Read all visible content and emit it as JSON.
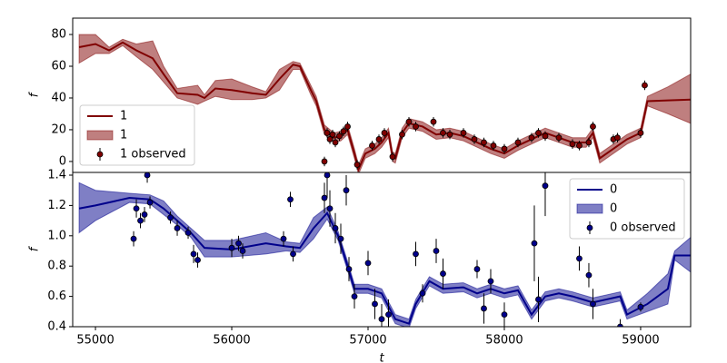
{
  "chart_data": [
    {
      "type": "line",
      "ylabel": "f",
      "xlim": [
        54833,
        59367
      ],
      "ylim": [
        -6.9,
        90.3
      ],
      "yticks": [
        0,
        20,
        40,
        60,
        80
      ],
      "legend": "lower left",
      "series": [
        {
          "name": "1",
          "type": "line",
          "color": "#800000",
          "x": [
            54880,
            55000,
            55100,
            55200,
            55300,
            55420,
            55500,
            55600,
            55750,
            55800,
            55880,
            56000,
            56150,
            56250,
            56350,
            56450,
            56500,
            56580,
            56620,
            56680,
            56750,
            56800,
            56850,
            56900,
            56930,
            56980,
            57050,
            57100,
            57150,
            57180,
            57200,
            57250,
            57300,
            57400,
            57500,
            57600,
            57700,
            57800,
            57900,
            58000,
            58100,
            58200,
            58300,
            58400,
            58500,
            58600,
            58650,
            58700,
            58800,
            58900,
            59000,
            59050,
            59200,
            59367
          ],
          "values": [
            72,
            74,
            70,
            75,
            70,
            65,
            55,
            43,
            42,
            40,
            46,
            45,
            43,
            42,
            52,
            61,
            60,
            45,
            38,
            20,
            15,
            16,
            20,
            5,
            -5,
            5,
            8,
            12,
            18,
            3,
            2,
            18,
            24,
            22,
            17,
            18,
            16,
            12,
            8,
            5,
            10,
            14,
            18,
            15,
            12,
            12,
            18,
            2,
            8,
            14,
            18,
            38,
            38.5,
            39
          ]
        },
        {
          "name": "1",
          "type": "band",
          "color": "#800000",
          "x": [
            54880,
            55000,
            55100,
            55200,
            55300,
            55420,
            55500,
            55600,
            55750,
            55800,
            55880,
            56000,
            56150,
            56250,
            56350,
            56450,
            56500,
            56580,
            56620,
            56680,
            56750,
            56800,
            56850,
            56900,
            56930,
            56980,
            57050,
            57100,
            57150,
            57180,
            57200,
            57250,
            57300,
            57400,
            57500,
            57600,
            57700,
            57800,
            57900,
            58000,
            58100,
            58200,
            58300,
            58400,
            58500,
            58600,
            58650,
            58700,
            58800,
            58900,
            59000,
            59050,
            59200,
            59367
          ],
          "lower": [
            62,
            68,
            68,
            73,
            66,
            58,
            50,
            40,
            36,
            38,
            41,
            39,
            39,
            40,
            45,
            58,
            58,
            42,
            35,
            17,
            12,
            13,
            17,
            2,
            -8,
            2,
            5,
            9,
            15,
            0,
            -1,
            15,
            21,
            19,
            14,
            15,
            13,
            9,
            5,
            2,
            7,
            11,
            15,
            12,
            9,
            9,
            15,
            -1,
            5,
            11,
            15,
            35,
            30,
            24
          ],
          "upper": [
            80,
            80,
            72,
            77,
            74,
            76,
            60,
            46,
            48,
            42,
            51,
            52,
            47,
            44,
            58,
            63,
            62,
            48,
            41,
            23,
            18,
            19,
            23,
            8,
            -2,
            8,
            11,
            15,
            21,
            6,
            5,
            21,
            27,
            25,
            20,
            21,
            19,
            15,
            11,
            8,
            13,
            17,
            21,
            18,
            15,
            15,
            21,
            5,
            11,
            17,
            21,
            41,
            47,
            55
          ]
        },
        {
          "name": "1 observed",
          "type": "errorbar",
          "color": "#800000",
          "x": [
            56680,
            56700,
            56720,
            56740,
            56760,
            56790,
            56820,
            56850,
            56920,
            57030,
            57080,
            57120,
            57180,
            57250,
            57300,
            57350,
            57480,
            57550,
            57600,
            57700,
            57780,
            57850,
            57920,
            58000,
            58100,
            58200,
            58250,
            58300,
            58400,
            58500,
            58550,
            58620,
            58650,
            58800,
            58830,
            59000,
            59030
          ],
          "values": [
            0,
            18,
            14,
            17,
            12,
            16,
            19,
            22,
            -2,
            10,
            14,
            18,
            3,
            17,
            25,
            22,
            25,
            18,
            17,
            18,
            14,
            12,
            10,
            8,
            12,
            15,
            18,
            16,
            15,
            11,
            10,
            12,
            22,
            14,
            15,
            18,
            48
          ],
          "errors": [
            3,
            3,
            3,
            3,
            3,
            3,
            3,
            3,
            3,
            3,
            3,
            3,
            3,
            3,
            3,
            3,
            3,
            3,
            3,
            3,
            3,
            3,
            3,
            3,
            3,
            3,
            3,
            3,
            3,
            3,
            3,
            3,
            3,
            3,
            3,
            3,
            3
          ]
        }
      ]
    },
    {
      "type": "line",
      "ylabel": "f",
      "xlabel": "t",
      "xlim": [
        54833,
        59367
      ],
      "ylim": [
        0.4,
        1.418
      ],
      "xticks": [
        55000,
        56000,
        57000,
        58000,
        59000
      ],
      "yticks": [
        0.4,
        0.6,
        0.8,
        {
          "value": 1,
          "label": "1.0"
        },
        1.2,
        1.4
      ],
      "legend": "upper right",
      "series": [
        {
          "name": "0",
          "type": "line",
          "color": "#00008b",
          "x": [
            54880,
            55000,
            55250,
            55400,
            55500,
            55600,
            55700,
            55800,
            56000,
            56250,
            56400,
            56500,
            56600,
            56700,
            56780,
            56850,
            56900,
            57000,
            57100,
            57200,
            57300,
            57350,
            57450,
            57550,
            57700,
            57800,
            57900,
            58000,
            58100,
            58200,
            58300,
            58400,
            58500,
            58650,
            58750,
            58850,
            58900,
            59050,
            59200,
            59250,
            59367
          ],
          "values": [
            1.18,
            1.2,
            1.25,
            1.24,
            1.18,
            1.1,
            1.02,
            0.92,
            0.91,
            0.95,
            0.93,
            0.92,
            1.05,
            1.15,
            1.0,
            0.8,
            0.65,
            0.65,
            0.62,
            0.45,
            0.42,
            0.55,
            0.7,
            0.65,
            0.66,
            0.62,
            0.65,
            0.62,
            0.64,
            0.48,
            0.6,
            0.62,
            0.6,
            0.56,
            0.58,
            0.6,
            0.48,
            0.55,
            0.65,
            0.87,
            0.87
          ]
        },
        {
          "name": "0",
          "type": "band",
          "color": "#00008b",
          "x": [
            54880,
            55000,
            55250,
            55400,
            55500,
            55600,
            55700,
            55800,
            56000,
            56250,
            56400,
            56500,
            56600,
            56700,
            56780,
            56850,
            56900,
            57000,
            57100,
            57200,
            57300,
            57350,
            57450,
            57550,
            57700,
            57800,
            57900,
            58000,
            58100,
            58200,
            58300,
            58400,
            58500,
            58650,
            58750,
            58850,
            58900,
            59050,
            59200,
            59250,
            59367
          ],
          "lower": [
            1.02,
            1.1,
            1.22,
            1.21,
            1.14,
            1.07,
            0.99,
            0.86,
            0.86,
            0.88,
            0.9,
            0.89,
            0.98,
            1.11,
            0.97,
            0.77,
            0.62,
            0.62,
            0.59,
            0.42,
            0.39,
            0.52,
            0.67,
            0.62,
            0.63,
            0.59,
            0.62,
            0.59,
            0.61,
            0.45,
            0.57,
            0.59,
            0.57,
            0.53,
            0.55,
            0.57,
            0.45,
            0.5,
            0.55,
            0.84,
            0.76
          ],
          "upper": [
            1.35,
            1.3,
            1.28,
            1.27,
            1.23,
            1.13,
            1.05,
            0.97,
            0.97,
            1.02,
            0.96,
            0.95,
            1.12,
            1.19,
            1.03,
            0.83,
            0.68,
            0.68,
            0.65,
            0.48,
            0.45,
            0.58,
            0.73,
            0.68,
            0.69,
            0.65,
            0.68,
            0.65,
            0.67,
            0.51,
            0.63,
            0.65,
            0.63,
            0.59,
            0.61,
            0.63,
            0.51,
            0.62,
            0.75,
            0.9,
            0.99
          ]
        },
        {
          "name": "0 observed",
          "type": "errorbar",
          "color": "#00008b",
          "x": [
            55280,
            55300,
            55330,
            55360,
            55380,
            55400,
            55550,
            55600,
            55680,
            55720,
            55750,
            56000,
            56050,
            56080,
            56380,
            56430,
            56450,
            56680,
            56700,
            56720,
            56760,
            56800,
            56840,
            56860,
            56900,
            57000,
            57050,
            57100,
            57150,
            57350,
            57400,
            57500,
            57550,
            57800,
            57850,
            57900,
            58000,
            58220,
            58250,
            58300,
            58550,
            58620,
            58650,
            58850,
            59000
          ],
          "values": [
            0.98,
            1.18,
            1.1,
            1.14,
            1.4,
            1.22,
            1.12,
            1.05,
            1.02,
            0.88,
            0.84,
            0.92,
            0.95,
            0.9,
            0.98,
            1.24,
            0.88,
            1.25,
            1.4,
            1.18,
            1.05,
            0.98,
            1.3,
            0.78,
            0.6,
            0.82,
            0.55,
            0.45,
            0.48,
            0.88,
            0.62,
            0.9,
            0.75,
            0.78,
            0.52,
            0.7,
            0.48,
            0.95,
            0.58,
            1.33,
            0.85,
            0.74,
            0.55,
            0.4,
            0.53
          ],
          "errors": [
            0.05,
            0.06,
            0.05,
            0.05,
            0.05,
            0.04,
            0.04,
            0.05,
            0.04,
            0.06,
            0.05,
            0.06,
            0.05,
            0.05,
            0.05,
            0.05,
            0.05,
            0.1,
            0.15,
            0.12,
            0.1,
            0.1,
            0.1,
            0.08,
            0.08,
            0.08,
            0.1,
            0.1,
            0.1,
            0.08,
            0.06,
            0.08,
            0.1,
            0.06,
            0.1,
            0.08,
            0.08,
            0.25,
            0.15,
            0.2,
            0.08,
            0.08,
            0.1,
            0.05,
            0.03
          ]
        }
      ]
    }
  ]
}
